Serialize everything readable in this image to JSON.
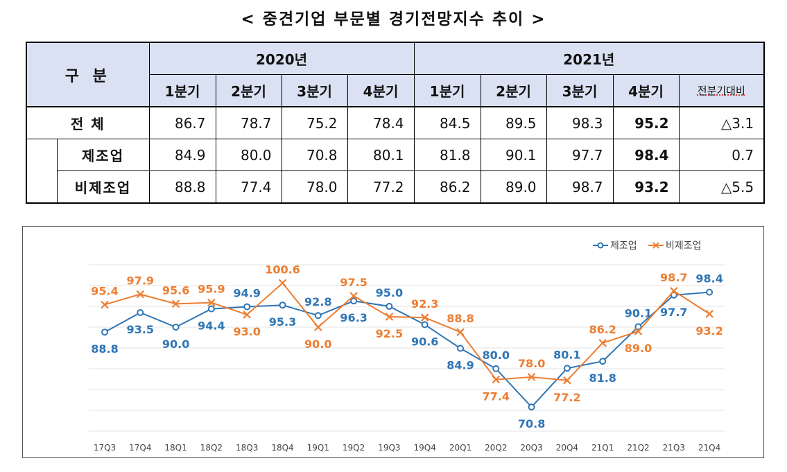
{
  "title": "< 중견기업 부문별 경기전망지수 추이 >",
  "table": {
    "corner_label": "구 분",
    "years": [
      "2020년",
      "2021년"
    ],
    "quarter_headers": [
      "1분기",
      "2분기",
      "3분기",
      "4분기",
      "1분기",
      "2분기",
      "3분기",
      "4분기",
      "전분기대비"
    ],
    "rows": [
      {
        "label": "전 체",
        "values": [
          "86.7",
          "78.7",
          "75.2",
          "78.4",
          "84.5",
          "89.5",
          "98.3",
          "95.2",
          "△3.1"
        ]
      },
      {
        "label": "제조업",
        "values": [
          "84.9",
          "80.0",
          "70.8",
          "80.1",
          "81.8",
          "90.1",
          "97.7",
          "98.4",
          "0.7"
        ]
      },
      {
        "label": "비제조업",
        "values": [
          "88.8",
          "77.4",
          "78.0",
          "77.2",
          "86.2",
          "89.0",
          "98.7",
          "93.2",
          "△5.5"
        ]
      }
    ]
  },
  "chart_data": {
    "type": "line",
    "title": "",
    "xlabel": "",
    "ylabel": "",
    "ylim": [
      65,
      105
    ],
    "grid": true,
    "legend_position": "top-right",
    "categories": [
      "17Q3",
      "17Q4",
      "18Q1",
      "18Q2",
      "18Q3",
      "18Q4",
      "19Q1",
      "19Q2",
      "19Q3",
      "19Q4",
      "20Q1",
      "20Q2",
      "20Q3",
      "20Q4",
      "21Q1",
      "21Q2",
      "21Q3",
      "21Q4"
    ],
    "series": [
      {
        "name": "제조업",
        "color": "#2e75b6",
        "marker": "circle",
        "values": [
          88.8,
          93.5,
          90.0,
          94.4,
          94.9,
          95.3,
          92.8,
          96.3,
          95.0,
          90.6,
          84.9,
          80.0,
          70.8,
          80.1,
          81.8,
          90.1,
          97.7,
          98.4
        ],
        "label_pos": [
          "below",
          "below",
          "below",
          "below",
          "above",
          "below",
          "above",
          "below",
          "above",
          "below",
          "below",
          "above",
          "below",
          "above",
          "below",
          "above",
          "below",
          "above"
        ]
      },
      {
        "name": "비제조업",
        "color": "#ed7d31",
        "marker": "x",
        "values": [
          95.4,
          97.9,
          95.6,
          95.9,
          93.0,
          100.6,
          90.0,
          97.5,
          92.5,
          92.3,
          88.8,
          77.4,
          78.0,
          77.2,
          86.2,
          89.0,
          98.7,
          93.2
        ],
        "label_pos": [
          "above",
          "above",
          "above",
          "above",
          "below",
          "above",
          "below",
          "above",
          "below",
          "above",
          "above",
          "below",
          "above",
          "below",
          "above",
          "below",
          "above",
          "below"
        ]
      }
    ]
  }
}
